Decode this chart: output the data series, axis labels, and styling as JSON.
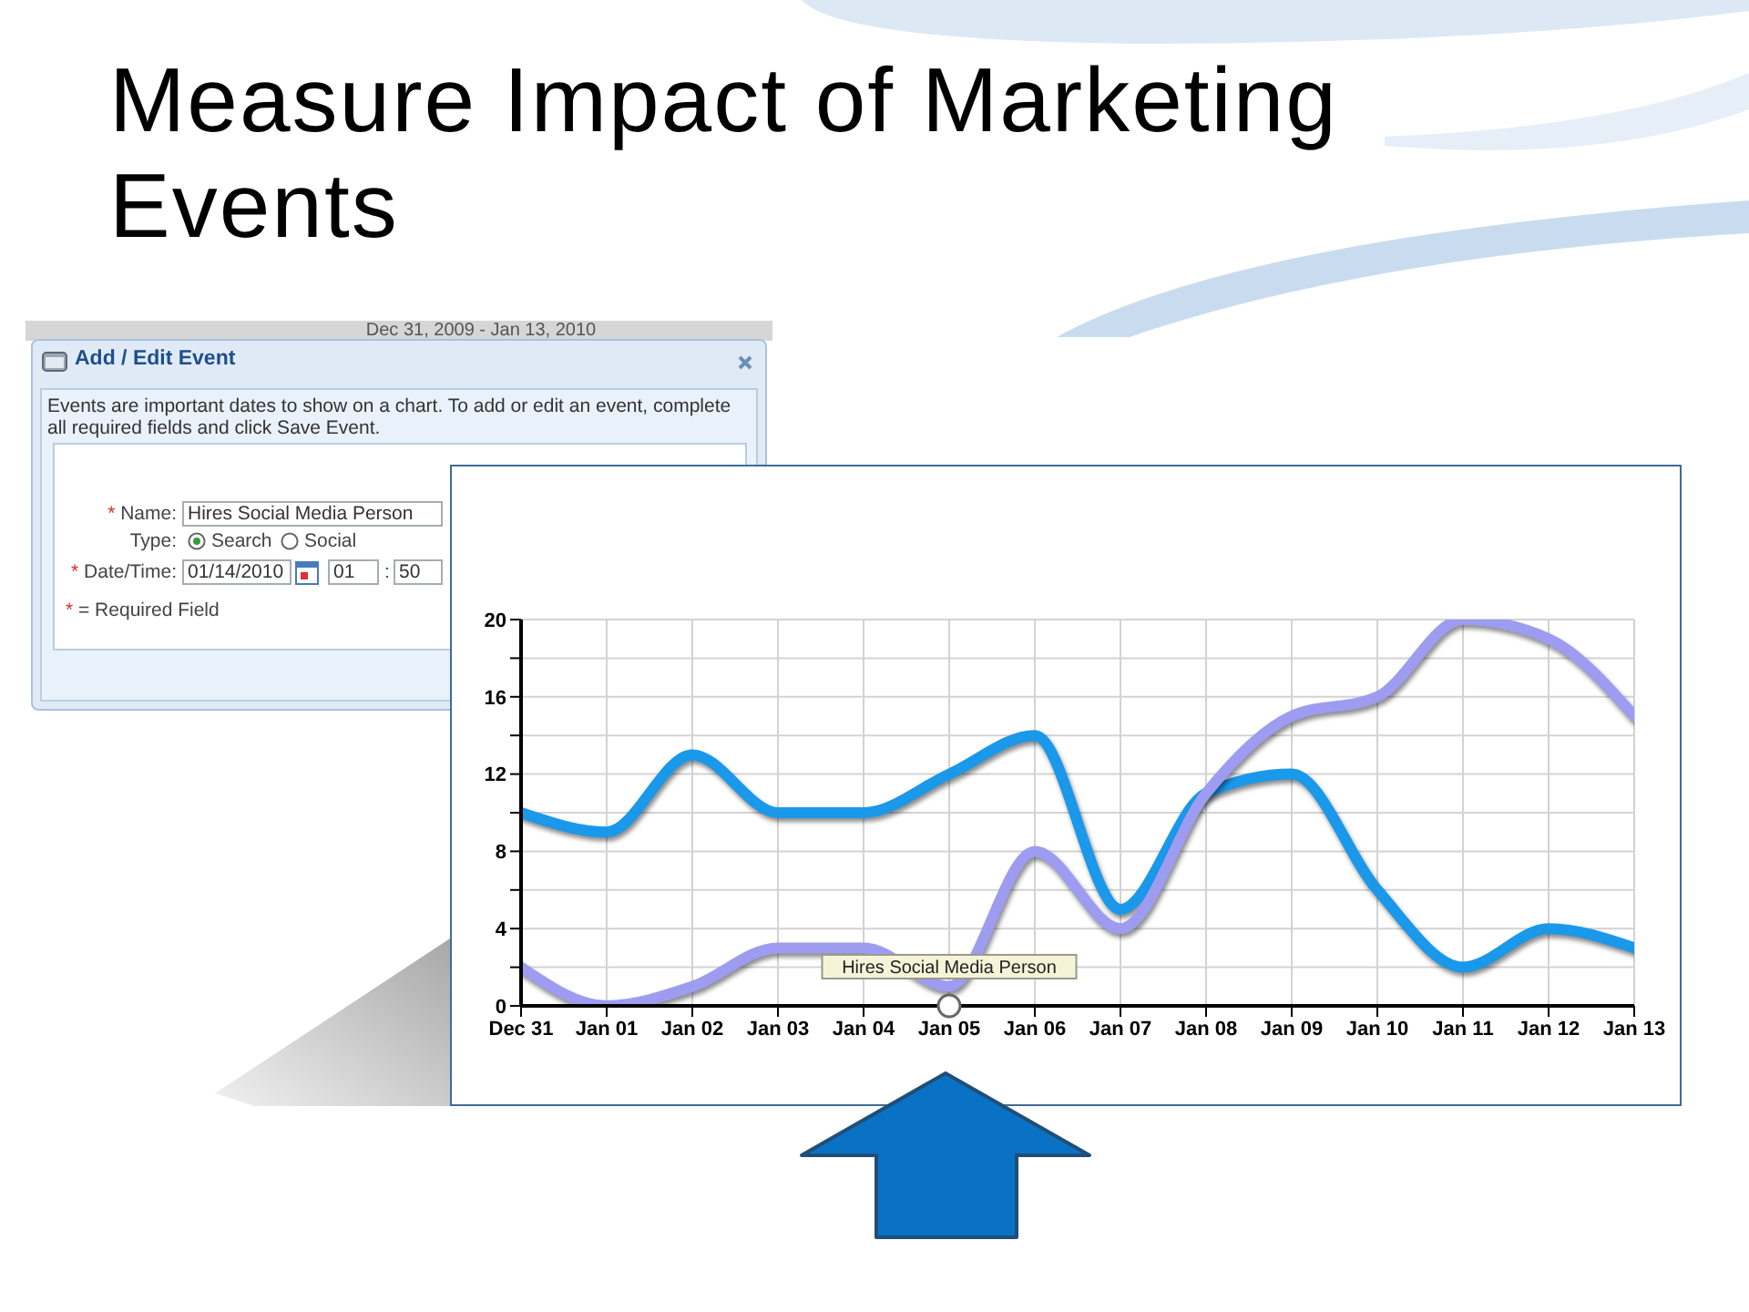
{
  "chart_data": [
    {
      "type": "line",
      "title": "Measure Impact of Marketing Events",
      "categories": [
        "Dec 31",
        "Jan 01",
        "Jan 02",
        "Jan 03",
        "Jan 04",
        "Jan 05",
        "Jan 06",
        "Jan 07",
        "Jan 08",
        "Jan 09",
        "Jan 10",
        "Jan 11",
        "Jan 12",
        "Jan 13"
      ],
      "series": [
        {
          "color": "#1a98ea",
          "values": [
            10,
            9,
            13,
            10,
            10,
            12,
            14,
            5,
            11,
            12,
            6,
            2,
            4,
            3
          ]
        },
        {
          "color": "#9d9cf0",
          "values": [
            2,
            0,
            1,
            3,
            3,
            1,
            8,
            4,
            11,
            15,
            16,
            20,
            19,
            15
          ]
        }
      ],
      "ylim": [
        0,
        20
      ],
      "yticks": [
        0,
        {
          "value": 2,
          "label": null
        },
        4,
        {
          "value": 6,
          "label": null
        },
        8,
        {
          "value": 10,
          "label": null
        },
        12,
        {
          "value": 14,
          "label": null
        },
        16,
        {
          "value": 18,
          "label": null
        },
        20
      ],
      "grid": true,
      "marker": "none",
      "line_style": "solid",
      "annotations": [
        {
          "text": "Hires Social Media Person",
          "x": "Jan 05",
          "y": 0
        }
      ]
    },
    {
      "type": "other",
      "title": "Add / Edit Event",
      "annotations": [
        "Dec 31, 2009 - Jan 13, 2010",
        "Events are important dates to show on a chart. To add or edit an event, complete all required fields and click Save Event.",
        "* Name:",
        "Hires Social Media Person",
        "Type:",
        "Search",
        "Social",
        "* Date/Time:",
        "01/14/2010",
        "01",
        ":",
        "50",
        "* = Required Field"
      ]
    }
  ]
}
